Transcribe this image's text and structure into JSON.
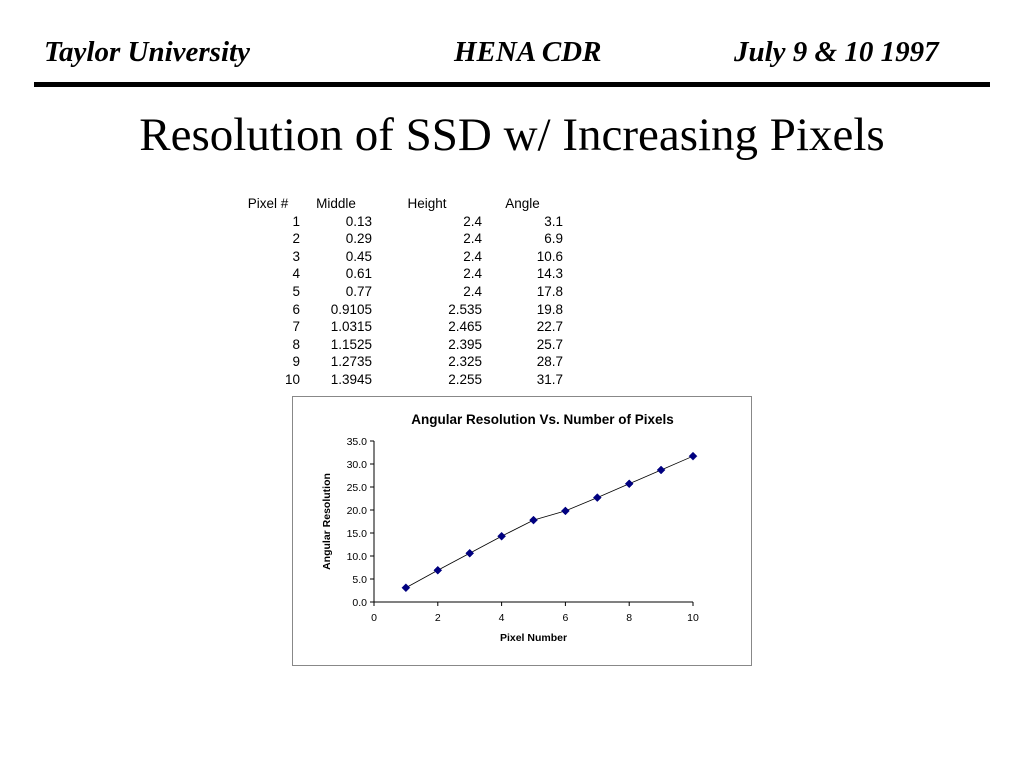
{
  "header": {
    "left": "Taylor University",
    "center": "HENA CDR",
    "right": "July 9 & 10 1997"
  },
  "slide_title": "Resolution of SSD w/ Increasing Pixels",
  "table": {
    "headers": [
      "Pixel #",
      "Middle",
      "Height",
      "Angle"
    ],
    "rows": [
      [
        "1",
        "0.13",
        "2.4",
        "3.1"
      ],
      [
        "2",
        "0.29",
        "2.4",
        "6.9"
      ],
      [
        "3",
        "0.45",
        "2.4",
        "10.6"
      ],
      [
        "4",
        "0.61",
        "2.4",
        "14.3"
      ],
      [
        "5",
        "0.77",
        "2.4",
        "17.8"
      ],
      [
        "6",
        "0.9105",
        "2.535",
        "19.8"
      ],
      [
        "7",
        "1.0315",
        "2.465",
        "22.7"
      ],
      [
        "8",
        "1.1525",
        "2.395",
        "25.7"
      ],
      [
        "9",
        "1.2735",
        "2.325",
        "28.7"
      ],
      [
        "10",
        "1.3945",
        "2.255",
        "31.7"
      ]
    ]
  },
  "chart_data": {
    "type": "line",
    "title": "Angular Resolution Vs. Number of Pixels",
    "xlabel": "Pixel Number",
    "ylabel": "Angular Resolution",
    "xlim": [
      0,
      10
    ],
    "ylim": [
      0,
      35
    ],
    "xticks": [
      "0",
      "2",
      "4",
      "6",
      "8",
      "10"
    ],
    "yticks": [
      "0.0",
      "5.0",
      "10.0",
      "15.0",
      "20.0",
      "25.0",
      "30.0",
      "35.0"
    ],
    "grid": false,
    "legend": "none",
    "marker": "diamond",
    "marker_color": "#000080",
    "line_color": "#000000",
    "series": [
      {
        "x": [
          1,
          2,
          3,
          4,
          5,
          6,
          7,
          8,
          9,
          10
        ],
        "values": [
          3.1,
          6.9,
          10.6,
          14.3,
          17.8,
          19.8,
          22.7,
          25.7,
          28.7,
          31.7
        ]
      }
    ]
  }
}
